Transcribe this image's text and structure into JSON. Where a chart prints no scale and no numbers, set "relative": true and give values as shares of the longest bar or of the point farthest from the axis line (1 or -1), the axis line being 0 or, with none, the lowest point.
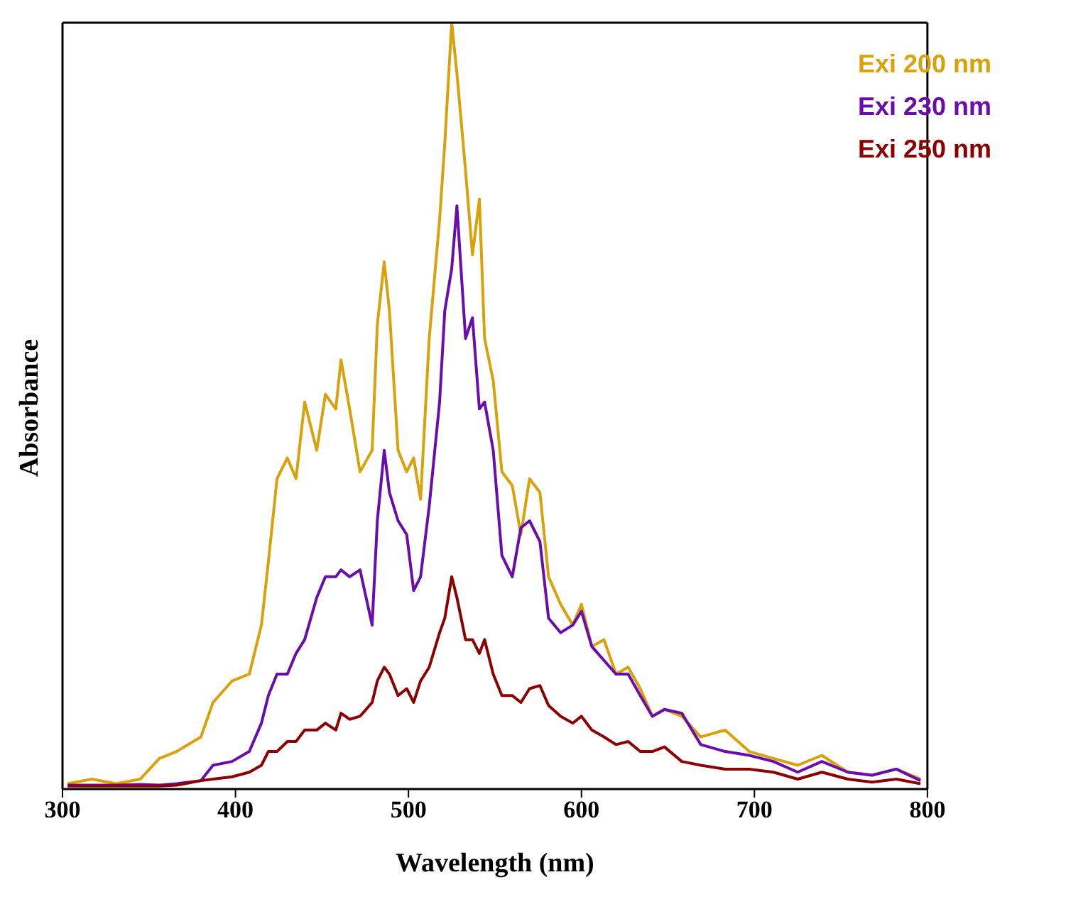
{
  "chart_data": {
    "type": "line",
    "xlabel": "Wavelength (nm)",
    "ylabel": "Absorbance",
    "relative": true,
    "xlim": [
      300,
      800
    ],
    "xticks": [
      300,
      400,
      500,
      600,
      700,
      800
    ],
    "legend": "top right",
    "grid": false,
    "marker": "none",
    "line_style": "solid",
    "x": [
      303,
      317,
      331,
      345,
      356,
      366,
      380,
      387,
      398,
      408,
      415,
      419,
      424,
      430,
      435,
      440,
      447,
      452,
      458,
      461,
      466,
      472,
      479,
      482,
      486,
      489,
      494,
      499,
      503,
      507,
      512,
      518,
      521,
      525,
      528,
      533,
      537,
      541,
      544,
      549,
      554,
      560,
      565,
      570,
      576,
      581,
      588,
      595,
      600,
      606,
      613,
      620,
      627,
      634,
      641,
      648,
      658,
      669,
      683,
      697,
      711,
      725,
      739,
      754,
      768,
      782,
      796
    ],
    "series": [
      {
        "name": "Exi 200 nm",
        "color": "#d9a20c",
        "values": [
          0.007,
          0.013,
          0.007,
          0.013,
          0.04,
          0.049,
          0.068,
          0.113,
          0.141,
          0.15,
          0.214,
          0.296,
          0.405,
          0.432,
          0.405,
          0.505,
          0.442,
          0.515,
          0.496,
          0.56,
          0.496,
          0.414,
          0.442,
          0.606,
          0.688,
          0.624,
          0.442,
          0.414,
          0.432,
          0.378,
          0.588,
          0.743,
          0.843,
          1,
          0.934,
          0.807,
          0.697,
          0.77,
          0.588,
          0.533,
          0.414,
          0.396,
          0.332,
          0.405,
          0.387,
          0.277,
          0.241,
          0.214,
          0.241,
          0.186,
          0.195,
          0.15,
          0.159,
          0.131,
          0.095,
          0.104,
          0.095,
          0.068,
          0.077,
          0.049,
          0.04,
          0.031,
          0.044,
          0.022,
          0.018,
          0.026,
          0.013
        ]
      },
      {
        "name": "Exi 230 nm",
        "color": "#6a0dad",
        "values": [
          0.005,
          0.005,
          0.005,
          0.006,
          0.005,
          0.007,
          0.011,
          0.031,
          0.036,
          0.049,
          0.086,
          0.122,
          0.15,
          0.15,
          0.177,
          0.195,
          0.25,
          0.277,
          0.277,
          0.286,
          0.277,
          0.286,
          0.214,
          0.35,
          0.442,
          0.387,
          0.35,
          0.332,
          0.259,
          0.277,
          0.369,
          0.505,
          0.624,
          0.679,
          0.761,
          0.588,
          0.615,
          0.496,
          0.505,
          0.442,
          0.305,
          0.277,
          0.341,
          0.35,
          0.323,
          0.223,
          0.204,
          0.214,
          0.232,
          0.186,
          0.168,
          0.15,
          0.15,
          0.122,
          0.095,
          0.104,
          0.099,
          0.058,
          0.049,
          0.044,
          0.036,
          0.022,
          0.036,
          0.022,
          0.018,
          0.026,
          0.011
        ]
      },
      {
        "name": "Exi 250 nm",
        "color": "#8b0000",
        "values": [
          0.004,
          0.004,
          0.004,
          0.004,
          0.004,
          0.005,
          0.011,
          0.013,
          0.016,
          0.022,
          0.031,
          0.049,
          0.049,
          0.062,
          0.062,
          0.077,
          0.077,
          0.086,
          0.077,
          0.099,
          0.091,
          0.095,
          0.113,
          0.141,
          0.159,
          0.15,
          0.122,
          0.131,
          0.113,
          0.141,
          0.159,
          0.204,
          0.223,
          0.277,
          0.25,
          0.195,
          0.195,
          0.177,
          0.195,
          0.15,
          0.122,
          0.122,
          0.113,
          0.131,
          0.135,
          0.109,
          0.095,
          0.086,
          0.095,
          0.077,
          0.068,
          0.058,
          0.062,
          0.049,
          0.049,
          0.055,
          0.036,
          0.031,
          0.026,
          0.026,
          0.022,
          0.013,
          0.022,
          0.013,
          0.009,
          0.013,
          0.007
        ]
      }
    ]
  }
}
